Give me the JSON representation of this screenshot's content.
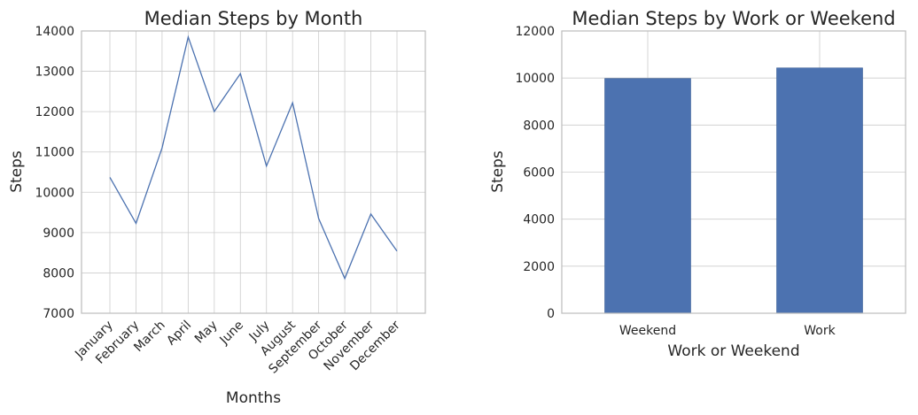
{
  "chart_data": [
    {
      "type": "line",
      "title": "Median Steps by Month",
      "xlabel": "Months",
      "ylabel": "Steps",
      "categories": [
        "January",
        "February",
        "March",
        "April",
        "May",
        "June",
        "July",
        "August",
        "September",
        "October",
        "November",
        "December"
      ],
      "values": [
        10370,
        9230,
        11100,
        13850,
        12000,
        12940,
        10650,
        12220,
        9350,
        7860,
        9460,
        8540
      ],
      "ylim": [
        7000,
        14000
      ],
      "yticks": [
        "7000",
        "8000",
        "9000",
        "10000",
        "11000",
        "12000",
        "13000",
        "14000"
      ],
      "grid": true,
      "color": "#4c72b0"
    },
    {
      "type": "bar",
      "title": "Median Steps by Work or Weekend",
      "xlabel": "Work or Weekend",
      "ylabel": "Steps",
      "categories": [
        "Weekend",
        "Work"
      ],
      "values": [
        9980,
        10430
      ],
      "ylim": [
        0,
        12000
      ],
      "yticks": [
        "0",
        "2000",
        "4000",
        "6000",
        "8000",
        "10000",
        "12000"
      ],
      "grid": true,
      "color": "#4c72b0"
    }
  ]
}
